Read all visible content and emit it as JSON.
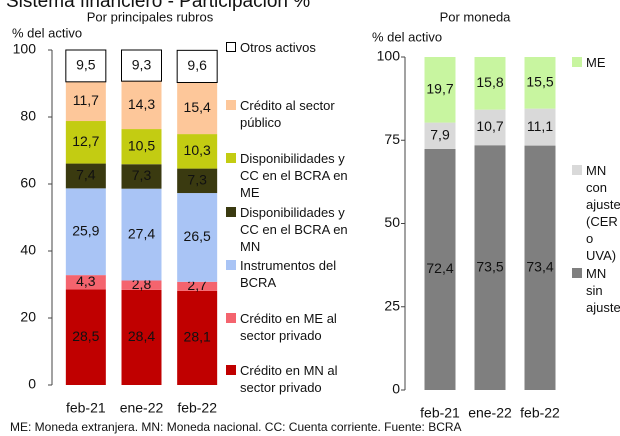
{
  "title": "Sistema financiero - Participación %",
  "footnote": "ME: Moneda extranjera. MN: Moneda nacional. CC: Cuenta corriente. Fuente: BCRA",
  "chart_data": [
    {
      "type": "bar",
      "stacked": true,
      "title": "Por principales rubros",
      "y_label": "% del activo",
      "categories": [
        "feb-21",
        "ene-22",
        "feb-22"
      ],
      "ylim": [
        0,
        100
      ],
      "yticks": [
        0,
        20,
        40,
        60,
        80,
        100
      ],
      "series": [
        {
          "name": "Crédito en MN al sector privado",
          "color": "#c00000",
          "values": [
            28.5,
            28.4,
            28.1
          ],
          "value_labels": [
            "28,5",
            "28,4",
            "28,1"
          ]
        },
        {
          "name": "Crédito en ME al sector privado",
          "color": "#f4646e",
          "values": [
            4.3,
            2.8,
            2.7
          ],
          "value_labels": [
            "4,3",
            "2,8",
            "2,7"
          ]
        },
        {
          "name": "Instrumentos del BCRA",
          "color": "#a9c4f5",
          "values": [
            25.9,
            27.4,
            26.5
          ],
          "value_labels": [
            "25,9",
            "27,4",
            "26,5"
          ]
        },
        {
          "name": "Disponibilidades y CC en el BCRA en MN",
          "color": "#3a3a10",
          "values": [
            7.4,
            7.3,
            7.3
          ],
          "value_labels": [
            "7,4",
            "7,3",
            "7,3"
          ]
        },
        {
          "name": "Disponibilidades y CC en el BCRA en ME",
          "color": "#c3cc12",
          "values": [
            12.7,
            10.5,
            10.3
          ],
          "value_labels": [
            "12,7",
            "10,5",
            "10,3"
          ]
        },
        {
          "name": "Crédito al sector público",
          "color": "#fdc79a",
          "values": [
            11.7,
            14.3,
            15.4
          ],
          "value_labels": [
            "11,7",
            "14,3",
            "15,4"
          ]
        },
        {
          "name": "Otros activos",
          "color": "#ffffff",
          "values": [
            9.5,
            9.3,
            9.6
          ],
          "value_labels": [
            "9,5",
            "9,3",
            "9,6"
          ]
        }
      ]
    },
    {
      "type": "bar",
      "stacked": true,
      "title": "Por moneda",
      "y_label": "% del activo",
      "categories": [
        "feb-21",
        "ene-22",
        "feb-22"
      ],
      "ylim": [
        0,
        100
      ],
      "yticks": [
        0,
        25,
        50,
        75,
        100
      ],
      "series": [
        {
          "name": "MN sin ajuste",
          "color": "#7f7f7f",
          "values": [
            72.4,
            73.5,
            73.4
          ],
          "value_labels": [
            "72,4",
            "73,5",
            "73,4"
          ]
        },
        {
          "name": "MN con ajuste (CER o UVA)",
          "color": "#d9d9d9",
          "values": [
            7.9,
            10.7,
            11.1
          ],
          "value_labels": [
            "7,9",
            "10,7",
            "11,1"
          ]
        },
        {
          "name": "ME",
          "color": "#c8f5a0",
          "values": [
            19.7,
            15.8,
            15.5
          ],
          "value_labels": [
            "19,7",
            "15,8",
            "15,5"
          ]
        }
      ]
    }
  ]
}
